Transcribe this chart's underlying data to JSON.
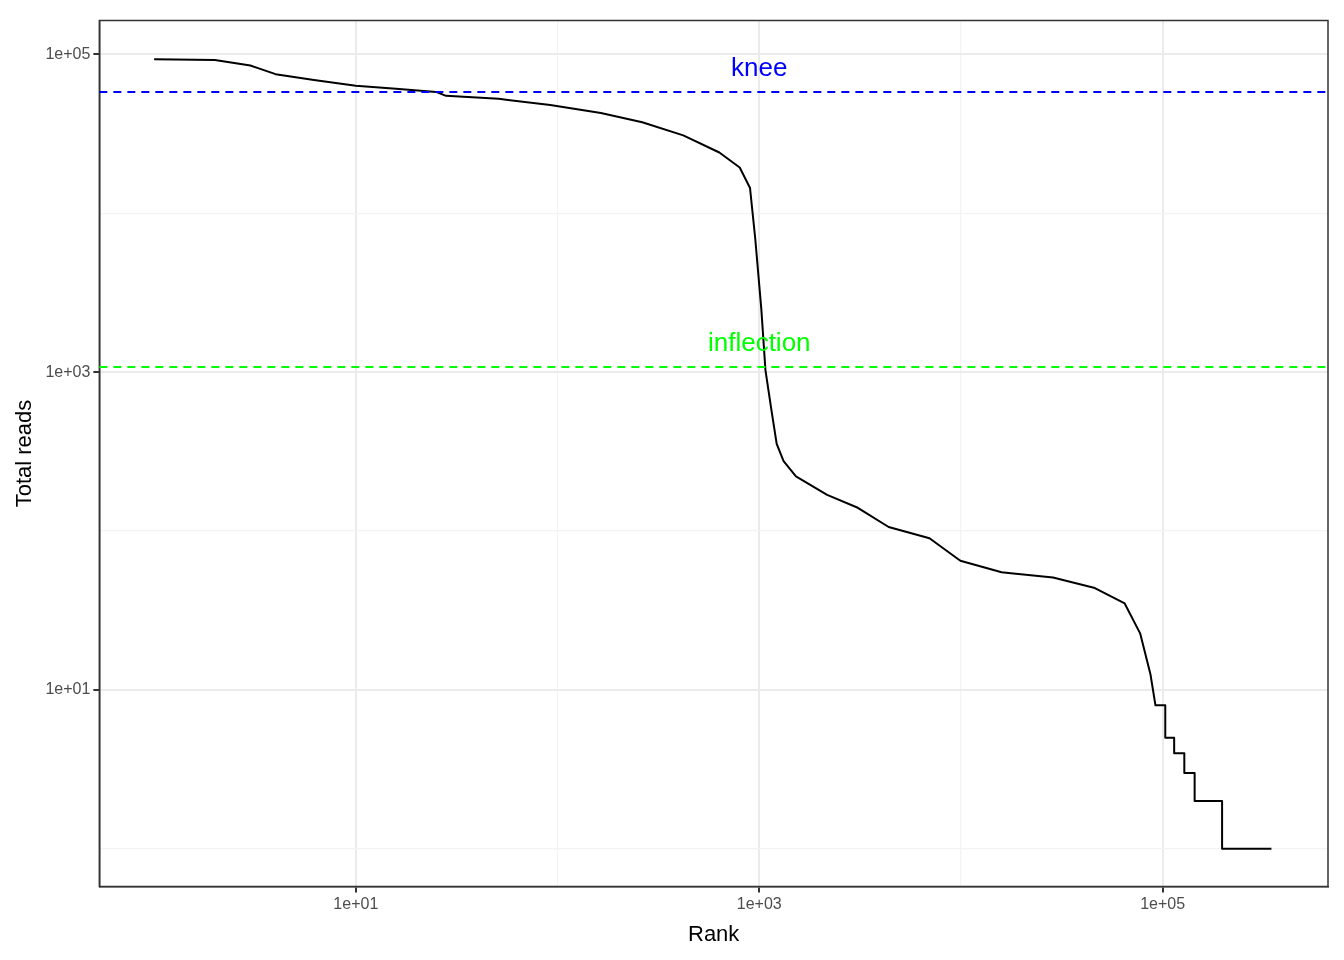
{
  "chart_data": {
    "type": "line",
    "xlabel": "Rank",
    "ylabel": "Total reads",
    "log": "xy",
    "grid": true,
    "legend": false,
    "marker": "none",
    "line_style": "solid",
    "xlim": [
      0.535,
      660000
    ],
    "ylim": [
      0.58,
      163000
    ],
    "xticks": [
      {
        "value": 10,
        "label": "1e+01"
      },
      {
        "value": 100,
        "label": null
      },
      {
        "value": 1000,
        "label": "1e+03"
      },
      {
        "value": 10000,
        "label": null
      },
      {
        "value": 100000,
        "label": "1e+05"
      }
    ],
    "yticks": [
      {
        "value": 1,
        "label": null
      },
      {
        "value": 10,
        "label": "1e+01"
      },
      {
        "value": 100,
        "label": null
      },
      {
        "value": 1000,
        "label": "1e+03"
      },
      {
        "value": 10000,
        "label": null
      },
      {
        "value": 100000,
        "label": "1e+05"
      }
    ],
    "ref_lines": [
      {
        "axis": "y",
        "value": 58000,
        "label": "knee",
        "color": "#0000ff",
        "line_style": "dashed"
      },
      {
        "axis": "y",
        "value": 1075,
        "label": "inflection",
        "color": "#00ff00",
        "line_style": "dashed"
      }
    ],
    "series": [
      {
        "color": "#000000",
        "x": [
          1,
          2,
          3,
          4,
          6.2,
          10,
          15.8,
          25,
          28,
          51,
          92,
          164,
          263,
          420,
          634,
          800,
          900,
          955,
          1024,
          1073,
          1150,
          1220,
          1320,
          1520,
          2170,
          3080,
          4380,
          6980,
          9930,
          15900,
          28600,
          45600,
          64800,
          77300,
          86900,
          92100,
          103000,
          103000,
          114000,
          114000,
          128000,
          128000,
          144000,
          144000,
          197000,
          197000,
          346000
        ],
        "values": [
          93000,
          92000,
          85000,
          75000,
          69000,
          63500,
          60700,
          58000,
          54800,
          52500,
          48000,
          42700,
          37400,
          30900,
          24100,
          19400,
          14400,
          6930,
          2480,
          1030,
          573,
          353,
          275,
          221,
          169,
          140,
          106,
          90,
          65,
          55,
          51,
          44,
          35,
          22.7,
          12.6,
          8,
          8,
          5,
          5,
          4,
          4,
          3,
          3,
          2,
          2,
          1,
          1
        ]
      }
    ]
  }
}
